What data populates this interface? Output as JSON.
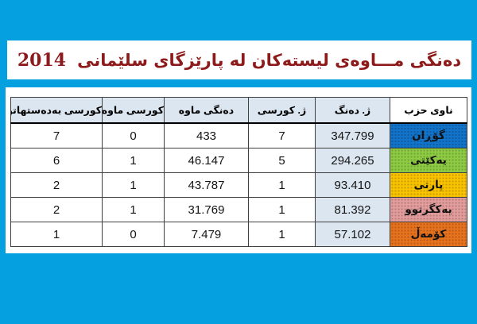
{
  "title": {
    "text": "دەنگی مـــاوەی لیستەکان لە پارێزگای سلێمانی",
    "year": "2014"
  },
  "colors": {
    "page_background": "#04A0E0",
    "banner_background": "#FFFFFF",
    "title_text": "#8E1B1B",
    "header_fill": "#DCE6F1",
    "votes_column_fill": "#DCE6F1"
  },
  "table": {
    "columns": [
      {
        "key": "party",
        "label": "ناوی حزب"
      },
      {
        "key": "votes",
        "label": "ژ. دەنگ"
      },
      {
        "key": "seats",
        "label": "ژ. کورسی"
      },
      {
        "key": "remaining_votes",
        "label": "دەنگی ماوه"
      },
      {
        "key": "remaining_seats",
        "label": "کورسی ماوه"
      },
      {
        "key": "obtained_seats",
        "label": "کورسی بەدەستهاتوو"
      }
    ],
    "rows": [
      {
        "party": "گۆڕان",
        "party_color": "#1173C9",
        "votes": "347.799",
        "seats": "7",
        "remaining_votes": "433",
        "remaining_seats": "0",
        "obtained_seats": "7"
      },
      {
        "party": "یەکێتی",
        "party_color": "#8FCC44",
        "votes": "294.265",
        "seats": "5",
        "remaining_votes": "46.147",
        "remaining_seats": "1",
        "obtained_seats": "6"
      },
      {
        "party": "پارتی",
        "party_color": "#FBC400",
        "votes": "93.410",
        "seats": "1",
        "remaining_votes": "43.787",
        "remaining_seats": "1",
        "obtained_seats": "2"
      },
      {
        "party": "یەکگرتوو",
        "party_color": "#E49C9C",
        "votes": "81.392",
        "seats": "1",
        "remaining_votes": "31.769",
        "remaining_seats": "1",
        "obtained_seats": "2"
      },
      {
        "party": "کۆمەڵ",
        "party_color": "#E8731E",
        "votes": "57.102",
        "seats": "1",
        "remaining_votes": "7.479",
        "remaining_seats": "0",
        "obtained_seats": "1"
      }
    ]
  }
}
